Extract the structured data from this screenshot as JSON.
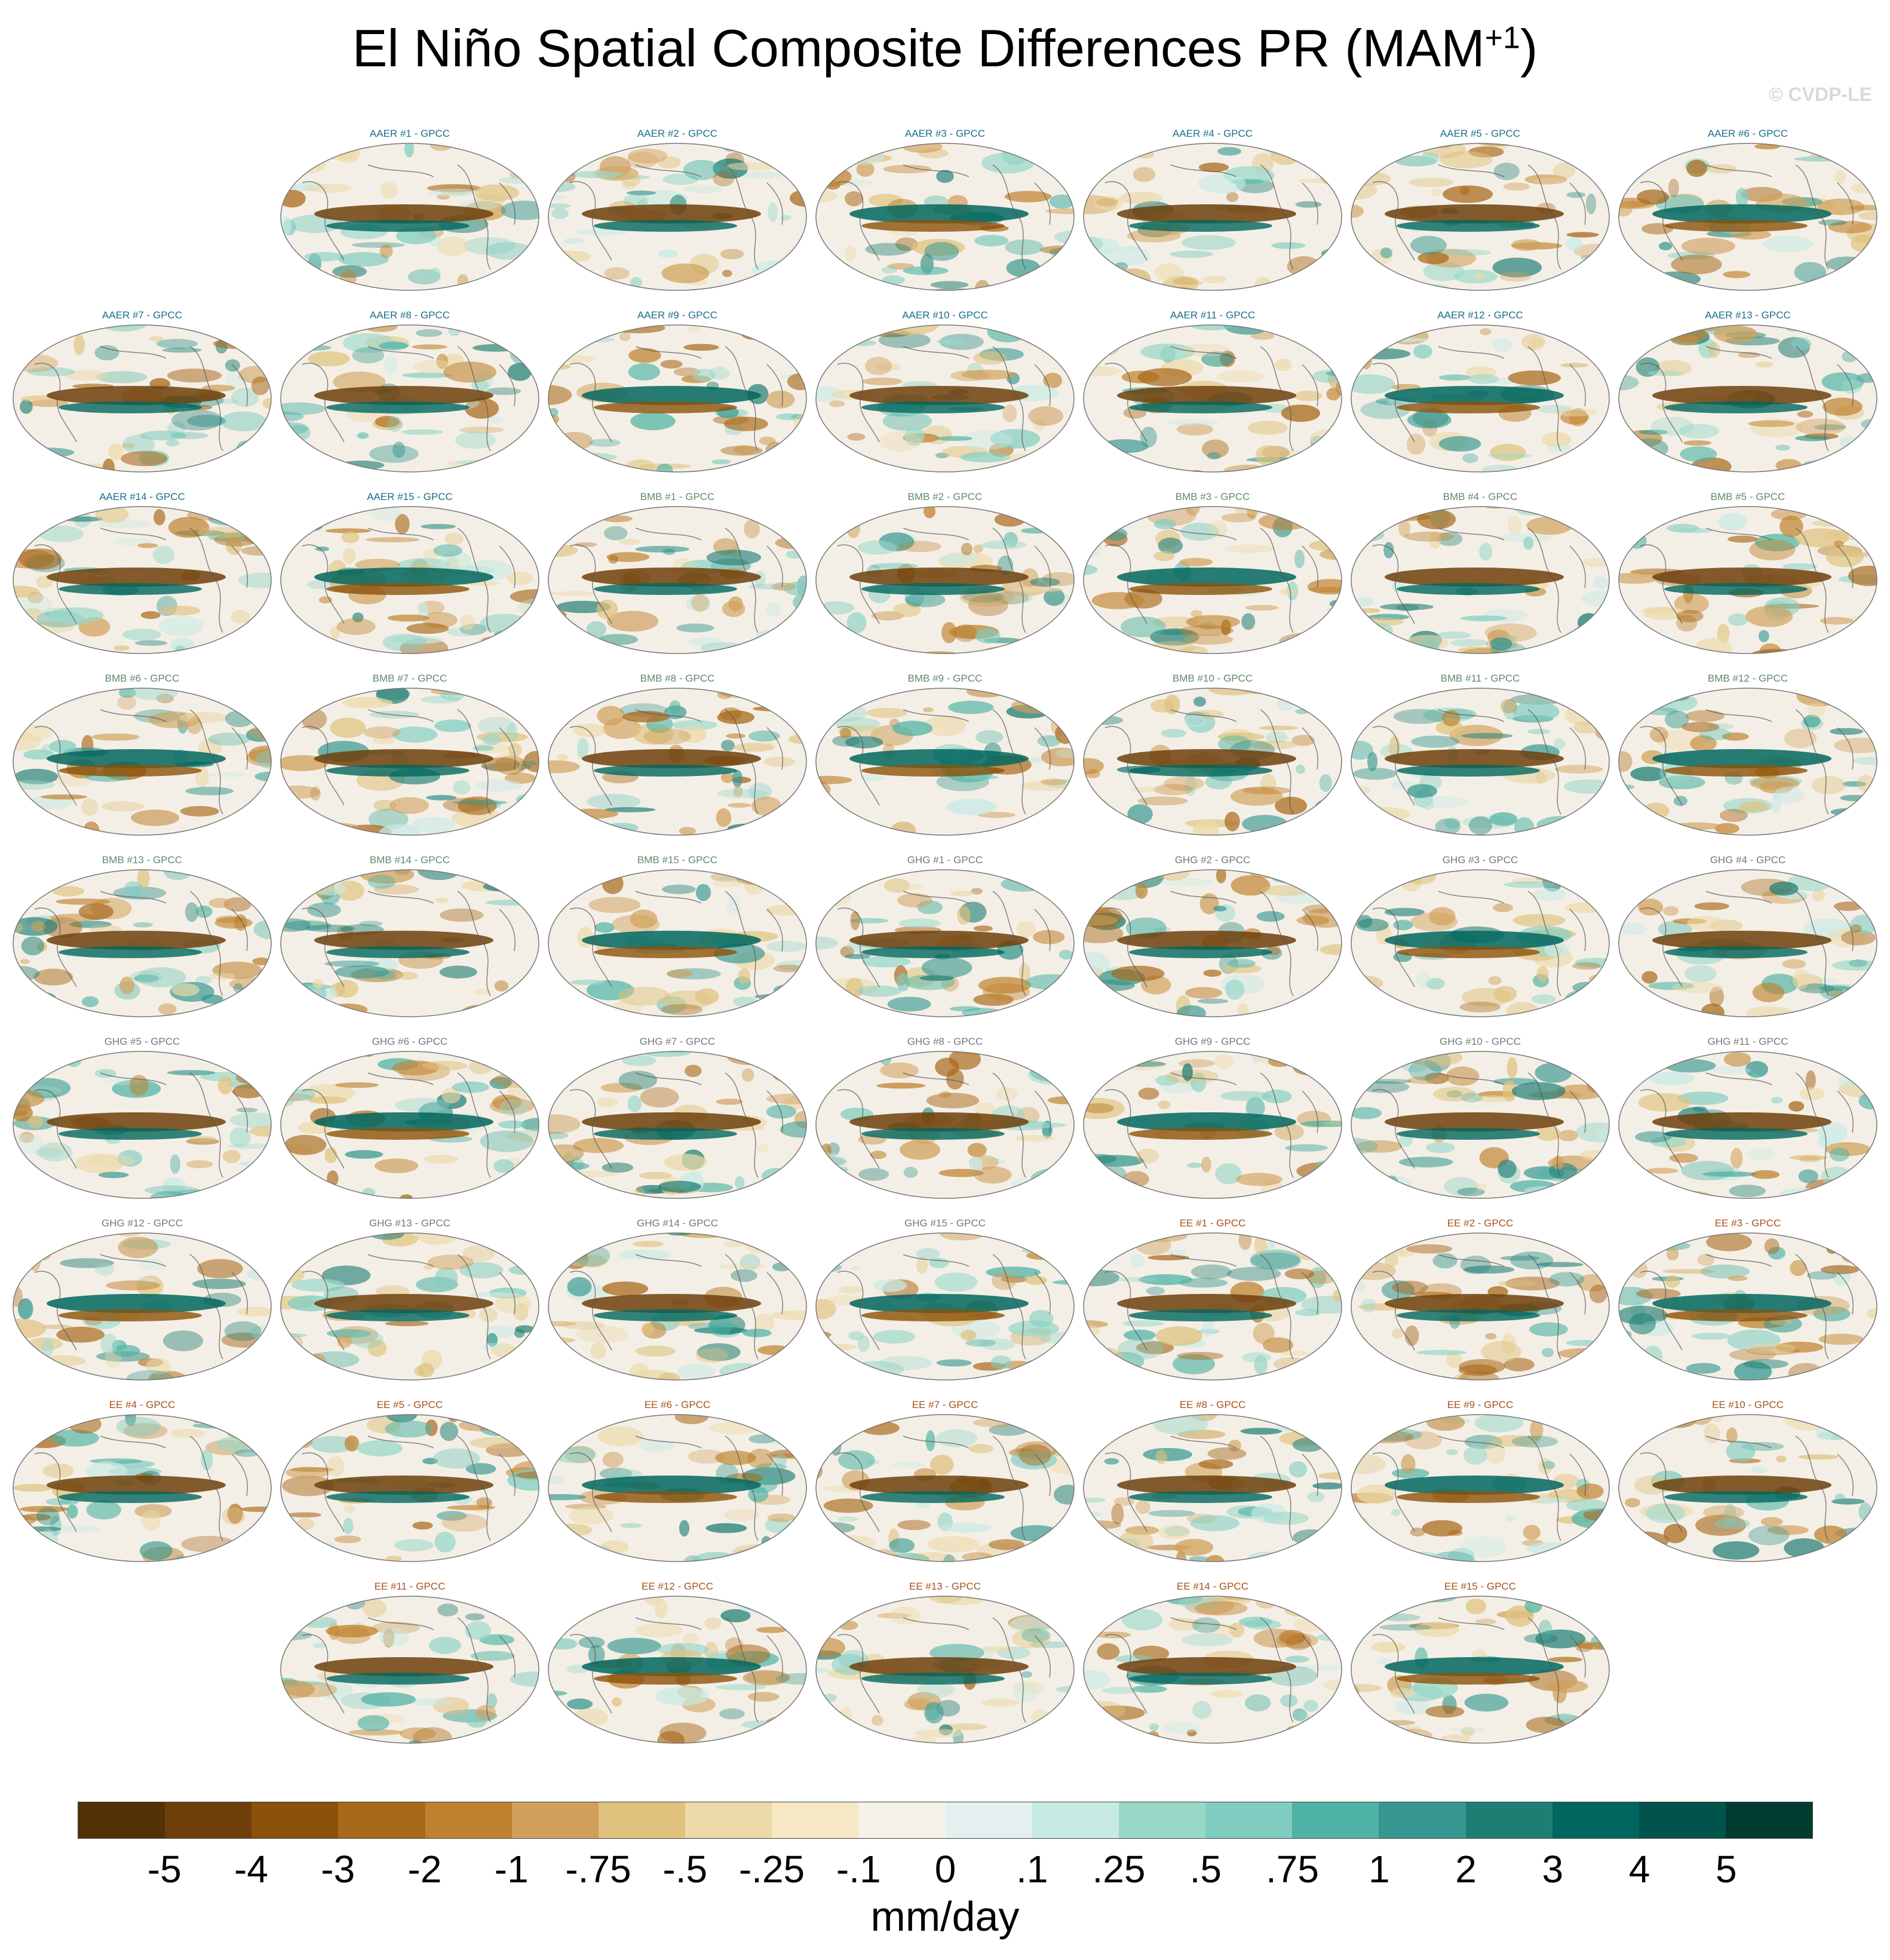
{
  "title": {
    "main": "El Niño Spatial Composite Differences PR (MAM",
    "superscript": "+1",
    "close": ")"
  },
  "copyright": "© CVDP-LE",
  "panel_title_suffix": " - GPCC",
  "groups": [
    {
      "name": "AAER",
      "color": "#1a6e8a",
      "count": 15
    },
    {
      "name": "BMB",
      "color": "#5f8a6a",
      "count": 15
    },
    {
      "name": "GHG",
      "color": "#777777",
      "count": 15
    },
    {
      "name": "EE",
      "color": "#a8521c",
      "count": 15
    }
  ],
  "map_style": {
    "ocean_background": "#f4efe6",
    "coastline_color": "#555555",
    "border_color": "#777777"
  },
  "colorbar": {
    "colors": [
      "#543005",
      "#6e3f0b",
      "#8c510a",
      "#a8681a",
      "#bf812d",
      "#d0a05a",
      "#dfc27d",
      "#ecd9a8",
      "#f6e8c3",
      "#f5f2ea",
      "#e4f0ef",
      "#c7eae5",
      "#99d8c9",
      "#80cdc1",
      "#4fb3a5",
      "#35978f",
      "#1f7e74",
      "#01665e",
      "#00544c",
      "#003c30"
    ],
    "labels": [
      "-5",
      "-4",
      "-3",
      "-2",
      "-1",
      "-.75",
      "-.5",
      "-.25",
      "-.1",
      "0",
      ".1",
      ".25",
      ".5",
      ".75",
      "1",
      "2",
      "3",
      "4",
      "5"
    ],
    "units": "mm/day"
  }
}
